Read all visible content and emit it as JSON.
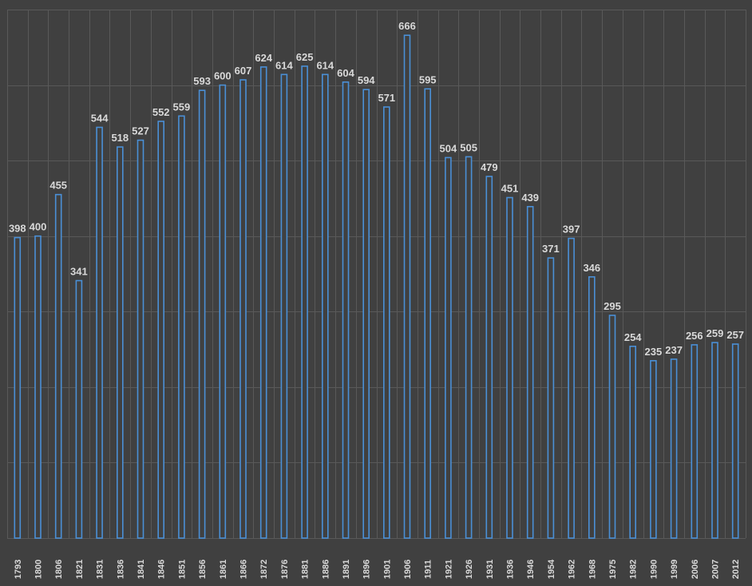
{
  "chart_data": {
    "type": "bar",
    "categories": [
      "1793",
      "1800",
      "1806",
      "1821",
      "1831",
      "1836",
      "1841",
      "1846",
      "1851",
      "1856",
      "1861",
      "1866",
      "1872",
      "1876",
      "1881",
      "1886",
      "1891",
      "1896",
      "1901",
      "1906",
      "1911",
      "1921",
      "1926",
      "1931",
      "1936",
      "1946",
      "1954",
      "1962",
      "1968",
      "1975",
      "1982",
      "1990",
      "1999",
      "2006",
      "2007",
      "2012"
    ],
    "values": [
      398,
      400,
      455,
      341,
      544,
      518,
      527,
      552,
      559,
      593,
      600,
      607,
      624,
      614,
      625,
      614,
      604,
      594,
      571,
      666,
      595,
      504,
      505,
      479,
      451,
      439,
      371,
      397,
      346,
      295,
      254,
      235,
      237,
      256,
      259,
      257
    ],
    "ylim": [
      0,
      700
    ],
    "grid": true,
    "data_labels": true,
    "colors": {
      "background": "#404040",
      "gridline": "#595959",
      "bar_fill": "#404040",
      "bar_stroke": "#4a8fd6",
      "label": "#d9d9d9"
    }
  }
}
